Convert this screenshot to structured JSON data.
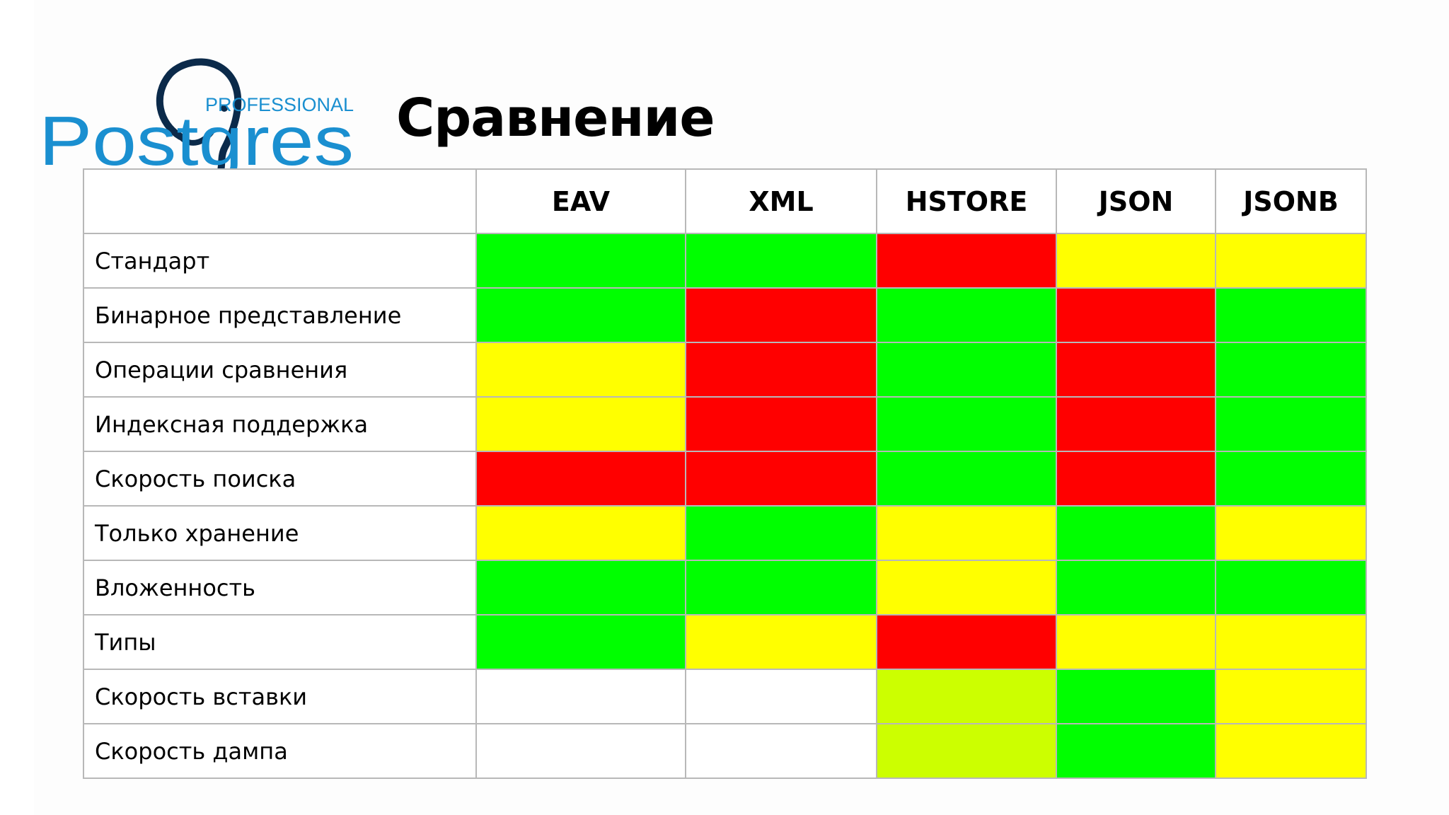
{
  "logo": {
    "brand": "Postgres",
    "tagline": "PROFESSIONAL"
  },
  "title": "Сравнение",
  "colors": {
    "good": "#00ff00",
    "bad": "#ff0000",
    "partial": "#ffff00",
    "mostly_good": "#ccff00",
    "none": "#ffffff",
    "logo_blue": "#1a8fd0",
    "logo_dark": "#0b2a4a"
  },
  "table": {
    "columns": [
      "EAV",
      "XML",
      "HSTORE",
      "JSON",
      "JSONB"
    ],
    "rows": [
      {
        "label": "Стандарт",
        "cells": [
          "good",
          "good",
          "bad",
          "partial",
          "partial"
        ]
      },
      {
        "label": "Бинарное представление",
        "cells": [
          "good",
          "bad",
          "good",
          "bad",
          "good"
        ]
      },
      {
        "label": "Операции сравнения",
        "cells": [
          "partial",
          "bad",
          "good",
          "bad",
          "good"
        ]
      },
      {
        "label": "Индексная поддержка",
        "cells": [
          "partial",
          "bad",
          "good",
          "bad",
          "good"
        ]
      },
      {
        "label": "Скорость поиска",
        "cells": [
          "bad",
          "bad",
          "good",
          "bad",
          "good"
        ]
      },
      {
        "label": "Только хранение",
        "cells": [
          "partial",
          "good",
          "partial",
          "good",
          "partial"
        ]
      },
      {
        "label": "Вложенность",
        "cells": [
          "good",
          "good",
          "partial",
          "good",
          "good"
        ]
      },
      {
        "label": "Типы",
        "cells": [
          "good",
          "partial",
          "bad",
          "partial",
          "partial"
        ]
      },
      {
        "label": "Скорость вставки",
        "cells": [
          "none",
          "none",
          "mostly_good",
          "good",
          "partial"
        ]
      },
      {
        "label": "Скорость дампа",
        "cells": [
          "none",
          "none",
          "mostly_good",
          "good",
          "partial"
        ]
      }
    ]
  }
}
